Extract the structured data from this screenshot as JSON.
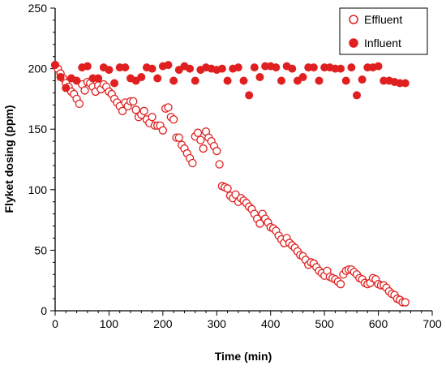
{
  "chart_data": {
    "type": "scatter",
    "xlabel": "Time (min)",
    "ylabel": "Flyket dosing (ppm)",
    "xlim": [
      0,
      700
    ],
    "ylim": [
      0,
      250
    ],
    "x_ticks": [
      0,
      100,
      200,
      300,
      400,
      500,
      600,
      700
    ],
    "y_ticks": [
      0,
      50,
      100,
      150,
      200,
      250
    ],
    "grid": false,
    "legend_position": "top-right",
    "colors": {
      "effluent": "#e02020",
      "influent": "#e02020",
      "axis": "#000000"
    },
    "series": [
      {
        "name": "Effluent",
        "marker": "open-circle",
        "x": [
          0,
          5,
          10,
          15,
          20,
          25,
          30,
          35,
          40,
          45,
          50,
          55,
          60,
          65,
          70,
          75,
          80,
          85,
          90,
          95,
          100,
          105,
          110,
          115,
          120,
          125,
          130,
          135,
          140,
          145,
          150,
          155,
          160,
          165,
          170,
          175,
          180,
          185,
          190,
          195,
          200,
          205,
          210,
          215,
          220,
          225,
          230,
          235,
          240,
          245,
          250,
          255,
          260,
          265,
          270,
          275,
          280,
          285,
          290,
          295,
          300,
          305,
          310,
          315,
          320,
          325,
          330,
          335,
          340,
          345,
          350,
          355,
          360,
          365,
          370,
          375,
          380,
          385,
          390,
          395,
          400,
          405,
          410,
          415,
          420,
          425,
          430,
          435,
          440,
          445,
          450,
          455,
          460,
          465,
          470,
          475,
          480,
          485,
          490,
          495,
          500,
          505,
          510,
          515,
          520,
          525,
          530,
          535,
          540,
          545,
          550,
          555,
          560,
          565,
          570,
          575,
          580,
          585,
          590,
          595,
          600,
          605,
          610,
          615,
          620,
          625,
          630,
          635,
          640,
          645,
          650
        ],
        "y": [
          203,
          200,
          196,
          192,
          188,
          185,
          181,
          179,
          175,
          171,
          187,
          182,
          189,
          188,
          185,
          181,
          186,
          183,
          187,
          185,
          181,
          179,
          175,
          172,
          169,
          165,
          172,
          169,
          173,
          173,
          166,
          160,
          162,
          165,
          158,
          155,
          160,
          153,
          153,
          153,
          149,
          167,
          168,
          160,
          158,
          143,
          143,
          137,
          134,
          130,
          126,
          122,
          144,
          147,
          141,
          134,
          148,
          143,
          140,
          136,
          132,
          121,
          103,
          102,
          101,
          95,
          93,
          96,
          90,
          93,
          91,
          89,
          86,
          84,
          80,
          76,
          72,
          80,
          76,
          73,
          69,
          68,
          66,
          62,
          59,
          56,
          60,
          56,
          54,
          52,
          49,
          46,
          45,
          42,
          38,
          40,
          39,
          36,
          33,
          31,
          29,
          33,
          28,
          27,
          26,
          24,
          22,
          30,
          33,
          34,
          34,
          32,
          30,
          27,
          26,
          23,
          22,
          23,
          27,
          26,
          22,
          21,
          21,
          19,
          16,
          14,
          13,
          10,
          9,
          7,
          7
        ]
      },
      {
        "name": "Influent",
        "marker": "filled-circle",
        "x": [
          0,
          10,
          20,
          30,
          40,
          50,
          60,
          70,
          80,
          90,
          100,
          110,
          120,
          130,
          140,
          150,
          160,
          170,
          180,
          190,
          200,
          210,
          220,
          230,
          240,
          250,
          260,
          270,
          280,
          290,
          300,
          310,
          320,
          330,
          340,
          350,
          360,
          370,
          380,
          390,
          400,
          410,
          420,
          430,
          440,
          450,
          460,
          470,
          480,
          490,
          500,
          510,
          520,
          530,
          540,
          550,
          560,
          570,
          580,
          590,
          600,
          610,
          620,
          630,
          640,
          650
        ],
        "y": [
          203,
          193,
          184,
          192,
          190,
          201,
          202,
          192,
          192,
          201,
          199,
          188,
          201,
          201,
          192,
          190,
          193,
          201,
          200,
          192,
          202,
          203,
          190,
          199,
          202,
          200,
          190,
          199,
          201,
          200,
          199,
          200,
          190,
          200,
          201,
          190,
          178,
          201,
          193,
          202,
          202,
          201,
          190,
          202,
          200,
          190,
          193,
          201,
          201,
          190,
          201,
          201,
          200,
          200,
          190,
          201,
          178,
          191,
          201,
          201,
          202,
          190,
          190,
          189,
          188,
          188
        ]
      }
    ]
  }
}
